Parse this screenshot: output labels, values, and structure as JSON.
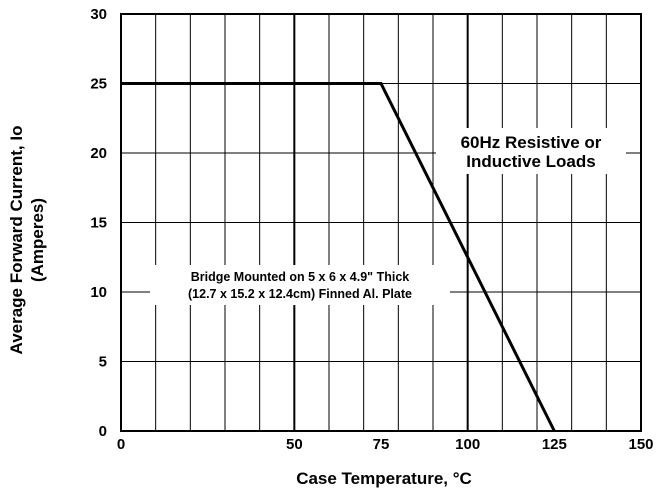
{
  "chart_data": {
    "type": "line",
    "xlabel": "Case  Temperature, °C",
    "ylabel_lines": [
      "Average Forward Current, Io",
      "(Amperes)"
    ],
    "xlim": [
      0,
      150
    ],
    "ylim": [
      0,
      30
    ],
    "x_ticks": [
      0,
      50,
      75,
      100,
      125,
      150
    ],
    "y_ticks": [
      0,
      5,
      10,
      15,
      20,
      25,
      30
    ],
    "x_tick_labels": [
      "0",
      "50",
      "75",
      "100",
      "125",
      "150"
    ],
    "y_tick_labels": [
      "0",
      "5",
      "10",
      "15",
      "20",
      "25",
      "30"
    ],
    "grid": true,
    "series": [
      {
        "x": [
          0,
          75,
          125
        ],
        "y": [
          25,
          25,
          0
        ]
      }
    ],
    "annotations": [
      {
        "lines": [
          "60Hz Resistive or",
          "Inductive Loads"
        ]
      },
      {
        "lines": [
          "Bridge Mounted on 5 x 6 x 4.9\" Thick",
          "(12.7 x 15.2 x 12.4cm) Finned Al. Plate"
        ]
      }
    ]
  }
}
